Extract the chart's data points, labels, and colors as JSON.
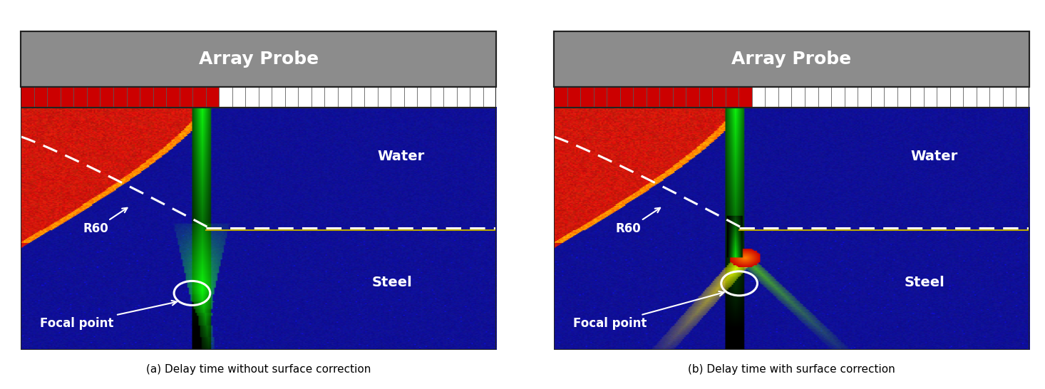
{
  "figure_width": 14.66,
  "figure_height": 5.46,
  "bg_color": "#ffffff",
  "caption_a": "(a) Delay time without surface correction",
  "caption_b": "(b) Delay time with surface correction",
  "caption_fontsize": 11,
  "probe_label": "Array Probe",
  "probe_label_fontsize": 18,
  "water_label": "Water",
  "steel_label": "Steel",
  "r60_label": "R60",
  "focal_label": "Focal point",
  "water_steel_label_fontsize": 14,
  "annotation_fontsize": 12
}
